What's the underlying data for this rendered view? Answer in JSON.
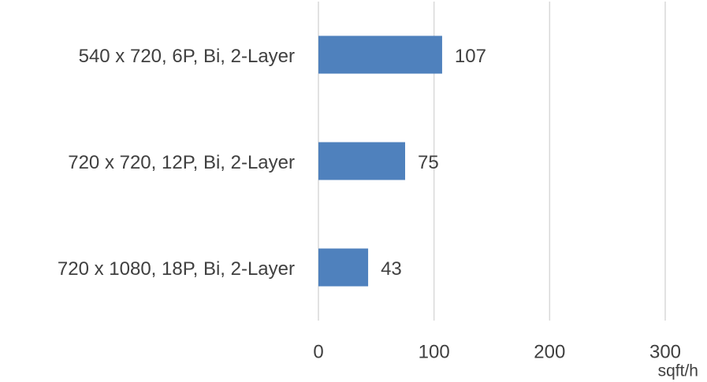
{
  "chart_data": {
    "type": "bar",
    "orientation": "horizontal",
    "categories": [
      "540 x 720, 6P, Bi, 2-Layer",
      "720 x 720, 12P, Bi, 2-Layer",
      "720 x 1080, 18P, Bi, 2-Layer"
    ],
    "values": [
      107,
      75,
      43
    ],
    "color": "#4f81bd",
    "x_label": "sqft/h",
    "xlim": [
      0,
      300
    ],
    "xticks": [
      0,
      100,
      200,
      300
    ],
    "grid": true
  }
}
